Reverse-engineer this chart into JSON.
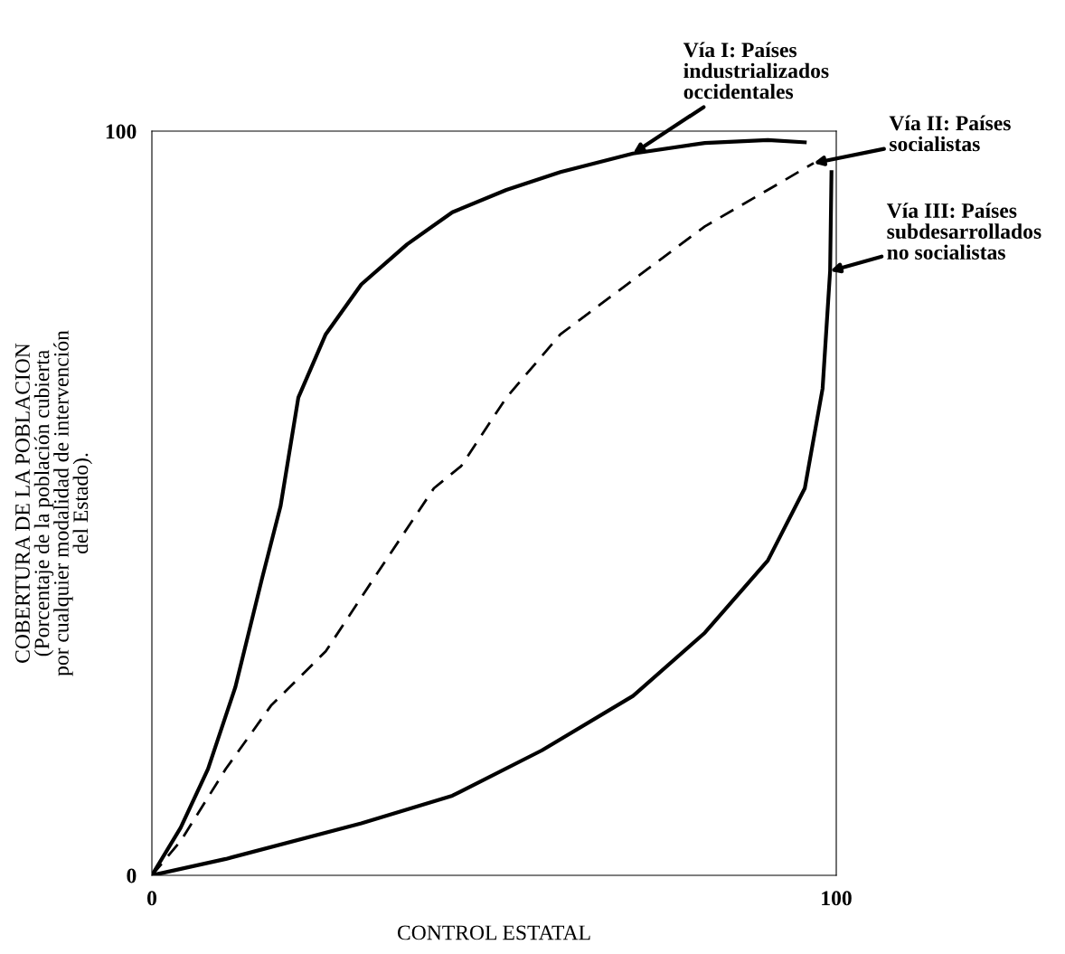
{
  "chart_data": {
    "type": "line",
    "xlabel": "CONTROL ESTATAL",
    "ylabel": "COBERTURA DE LA POBLACION\n(Porcentaje de la población cubierta\npor cualquier modalidad de intervención\ndel Estado).",
    "xlim": [
      0,
      100
    ],
    "ylim": [
      0,
      100
    ],
    "xticks": [
      0,
      100
    ],
    "yticks": [
      0,
      100
    ],
    "grid": false,
    "legend": false,
    "series": [
      {
        "color": "#000000",
        "line_style": "solid",
        "x": [
          0,
          4.2,
          8.2,
          12.2,
          16.1,
          18.8,
          21.4,
          25.4,
          30.6,
          37.3,
          43.9,
          51.8,
          59.7,
          70.3,
          80.8,
          90,
          95.4
        ],
        "values": [
          0,
          6.4,
          14.3,
          25.3,
          39.9,
          49.6,
          64.2,
          72.7,
          79.4,
          84.8,
          89.1,
          92.1,
          94.5,
          97,
          98.4,
          98.8,
          98.5
        ]
      },
      {
        "color": "#000000",
        "line_style": "dashed",
        "x": [
          0,
          4.2,
          10.8,
          17.4,
          25.4,
          33.3,
          41.2,
          45.2,
          51.8,
          59.7,
          70.3,
          80.8,
          90,
          96.7
        ],
        "values": [
          0,
          4.6,
          14.3,
          22.8,
          30.1,
          41.1,
          52,
          55,
          64.2,
          72.7,
          80,
          87.2,
          92.1,
          95.7
        ]
      },
      {
        "color": "#000000",
        "line_style": "solid",
        "x": [
          0,
          10.8,
          30.6,
          43.9,
          57,
          70.3,
          80.8,
          90,
          95.4,
          98,
          99.1,
          99.3
        ],
        "values": [
          0,
          2.2,
          7,
          10.7,
          16.8,
          24.1,
          32.6,
          42.3,
          52,
          65.4,
          81.2,
          94.5
        ]
      }
    ],
    "annotations": [
      {
        "text": "Vía I: Países\nindustrializados\noccidentales",
        "x": 70.3,
        "y": 97
      },
      {
        "text": "Vía II: Países\nsocialistas",
        "x": 96.7,
        "y": 95.7
      },
      {
        "text": "Vía III: Países\nsubdesarrollados\nno socialistas",
        "x": 99.1,
        "y": 81.2
      }
    ]
  }
}
